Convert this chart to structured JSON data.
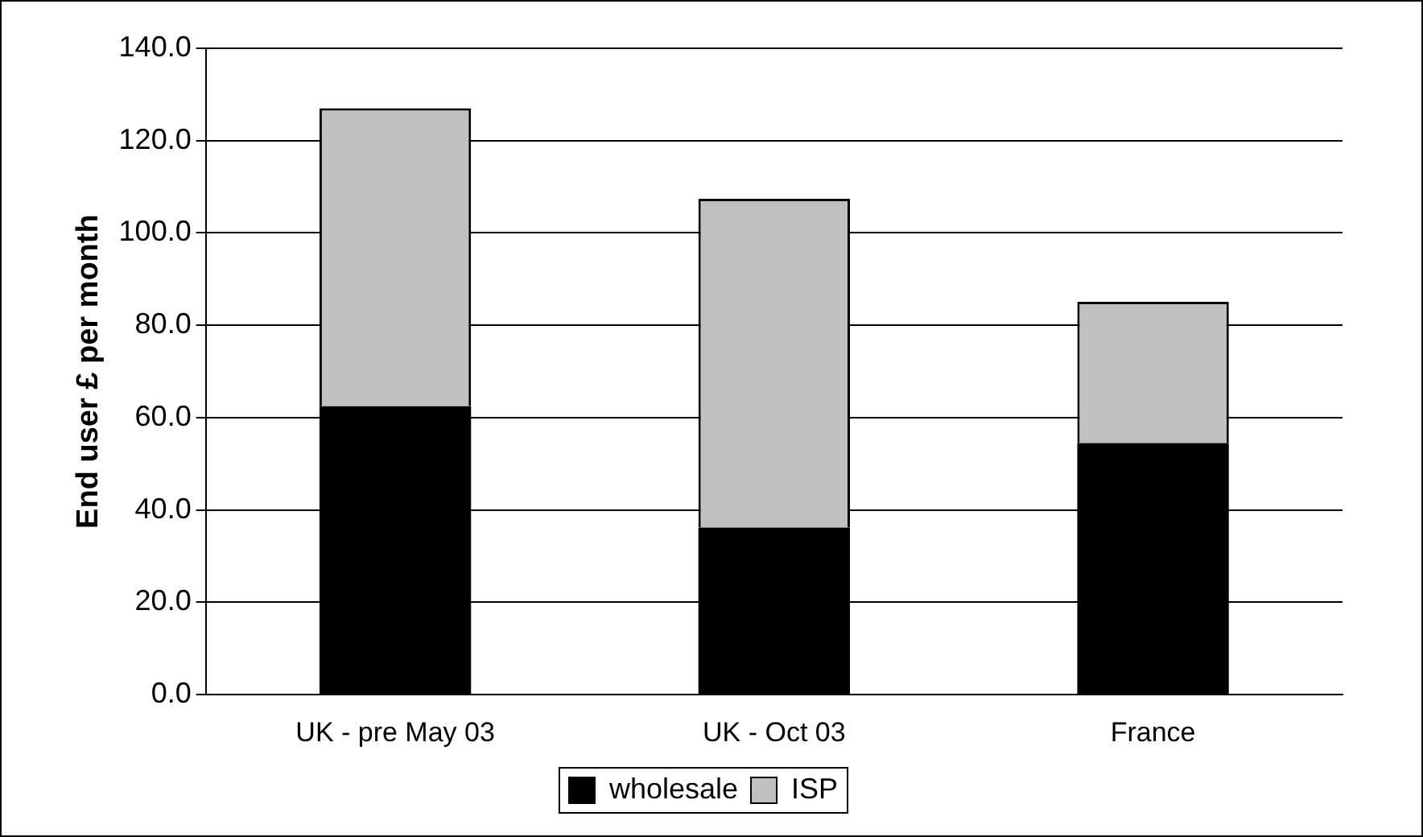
{
  "chart_data": {
    "type": "bar",
    "stacked": true,
    "ylabel": "End user £ per month",
    "categories": [
      "UK - pre May 03",
      "UK - Oct 03",
      "France"
    ],
    "series": [
      {
        "name": "wholesale",
        "color": "#000000",
        "values": [
          62.5,
          36.2,
          54.5
        ]
      },
      {
        "name": "ISP",
        "color": "#c0c0c0",
        "values": [
          64.5,
          71.2,
          30.6
        ]
      }
    ],
    "ylim": [
      0,
      140
    ],
    "yticks": [
      {
        "value": 0,
        "label": "0.0"
      },
      {
        "value": 20,
        "label": "20.0"
      },
      {
        "value": 40,
        "label": "40.0"
      },
      {
        "value": 60,
        "label": "60.0"
      },
      {
        "value": 80,
        "label": "80.0"
      },
      {
        "value": 100,
        "label": "100.0"
      },
      {
        "value": 120,
        "label": "120.0"
      },
      {
        "value": 140,
        "label": "140.0"
      }
    ],
    "grid": "y",
    "legend": "bottom"
  }
}
